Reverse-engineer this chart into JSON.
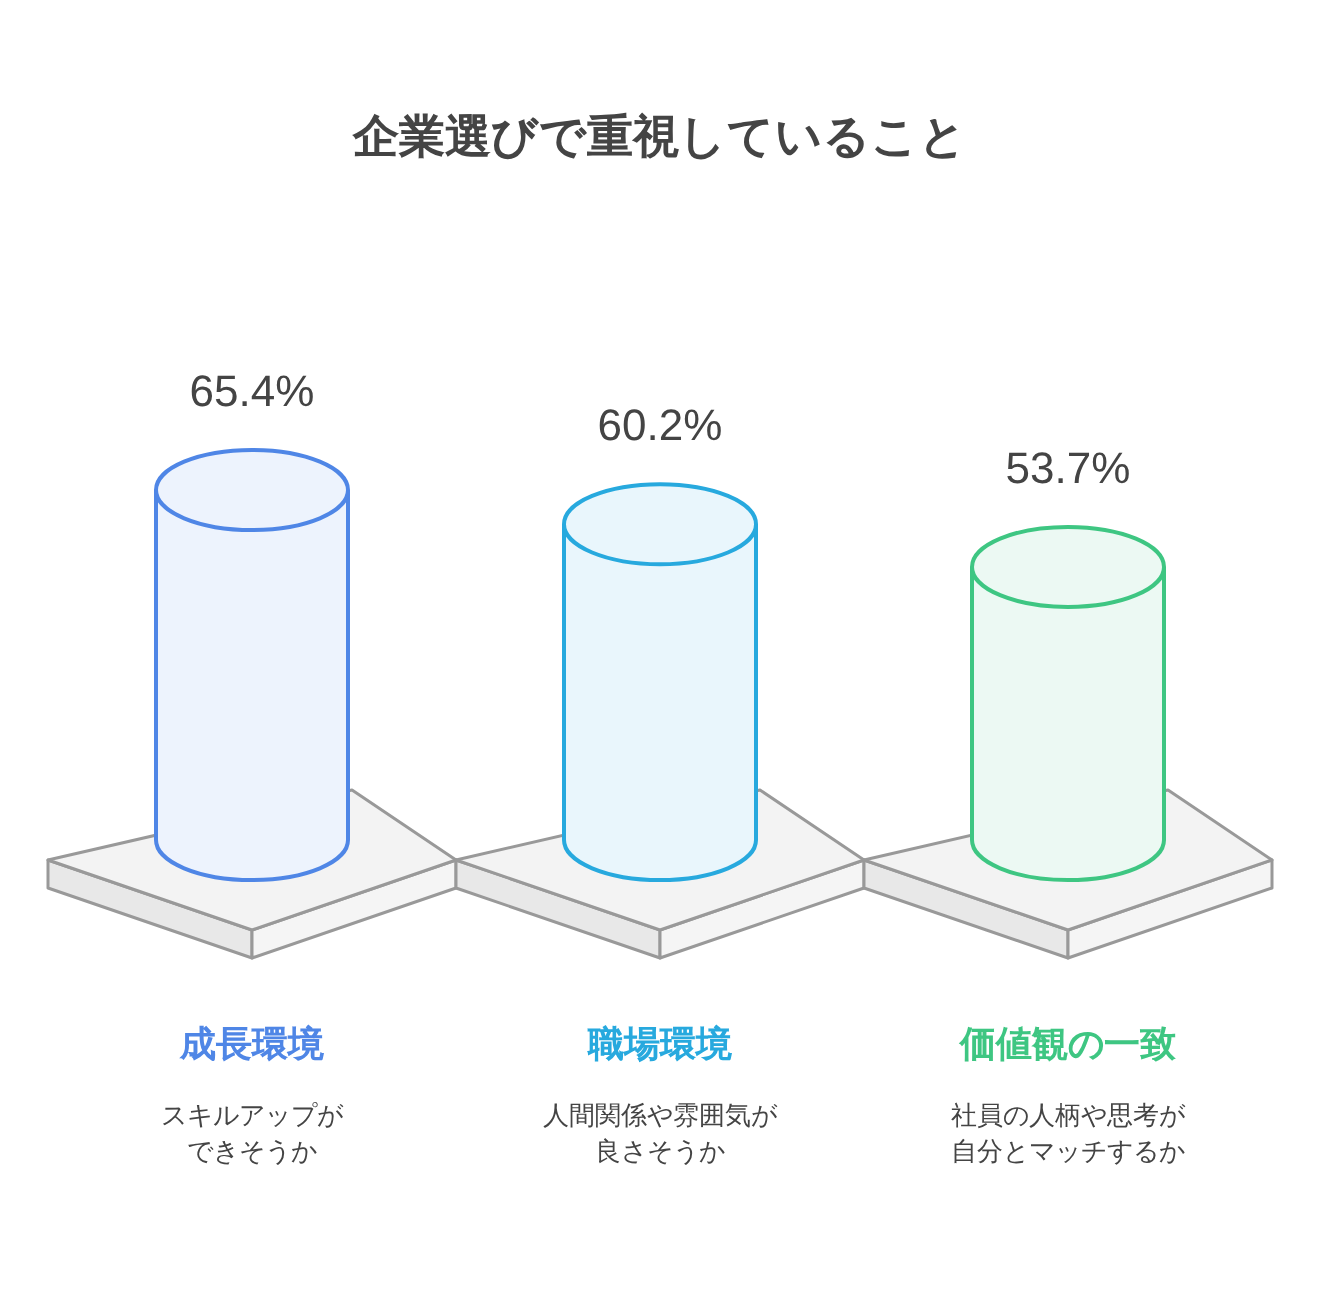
{
  "chart_data": {
    "type": "bar",
    "title": "企業選びで重視していること",
    "categories": [
      "成長環境",
      "職場環境",
      "価値観の一致"
    ],
    "values": [
      65.4,
      60.2,
      53.7
    ],
    "value_labels": [
      "65.4%",
      "60.2%",
      "53.7%"
    ],
    "colors": [
      "#4f86e6",
      "#27a9de",
      "#3ec682"
    ],
    "annotations": [
      "スキルアップが",
      "できそうか",
      "人間関係や雰囲気が",
      "良さそうか",
      "社員の人柄や思考が",
      "自分とマッチするか"
    ]
  }
}
